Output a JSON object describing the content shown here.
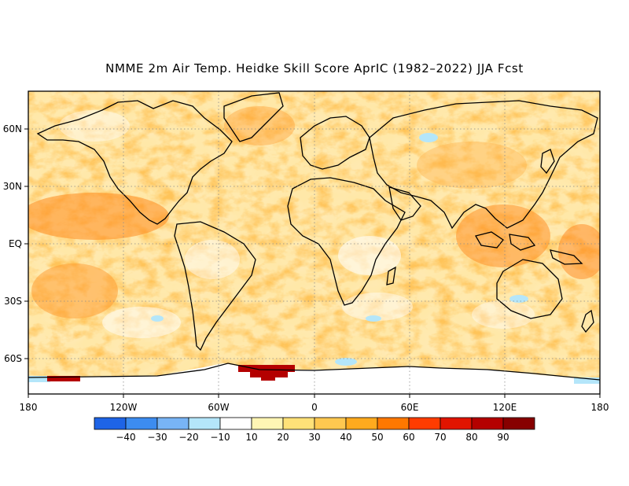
{
  "title": "NMME 2m Air Temp. Heidke Skill Score AprIC (1982–2022) JJA Fcst",
  "map": {
    "lon_labels": [
      "180",
      "120W",
      "60W",
      "0",
      "60E",
      "120E",
      "180"
    ],
    "lat_labels": [
      "60N",
      "30N",
      "EQ",
      "30S",
      "60S"
    ]
  },
  "colorbar": {
    "labels": [
      "−40",
      "−30",
      "−20",
      "−10",
      "10",
      "20",
      "30",
      "40",
      "50",
      "60",
      "70",
      "80",
      "90"
    ],
    "colors": [
      "#1e64e6",
      "#3c8cf0",
      "#78b4f5",
      "#b4e6fa",
      "#ffffff",
      "#fff5b4",
      "#ffe178",
      "#ffc850",
      "#ffaa1e",
      "#ff7800",
      "#ff3c00",
      "#e11400",
      "#b40000",
      "#870000"
    ]
  }
}
